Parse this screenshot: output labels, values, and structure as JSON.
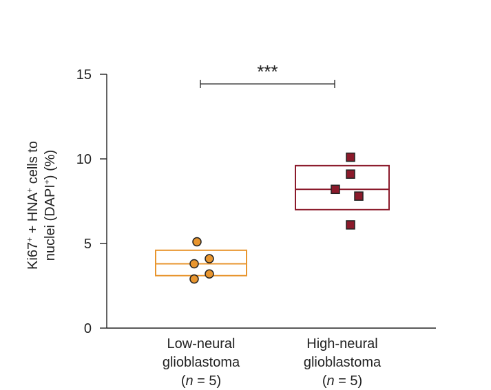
{
  "chart_data": {
    "type": "scatter",
    "ylabel": {
      "line1": [
        "Ki67",
        "+",
        " + HNA",
        "+",
        " cells to"
      ],
      "line2": [
        "nuclei (DAPI",
        "+",
        ") (%)"
      ]
    },
    "ylim": [
      0,
      15
    ],
    "yticks": [
      0,
      5,
      10,
      15
    ],
    "significance": "***",
    "groups": [
      {
        "label_lines": [
          "Low-neural",
          "glioblastoma",
          "(n = 5)"
        ],
        "n_prefix": "(",
        "n_italic": "n",
        "n_suffix": " = 5)",
        "color": "#E8952E",
        "marker": "circle",
        "box": {
          "lower": 3.1,
          "median": 3.8,
          "upper": 4.6
        },
        "values": [
          5.1,
          4.1,
          3.8,
          3.2,
          2.9
        ]
      },
      {
        "label_lines": [
          "High-neural",
          "glioblastoma",
          "(n = 5)"
        ],
        "n_prefix": "(",
        "n_italic": "n",
        "n_suffix": " = 5)",
        "color": "#8B1A2B",
        "marker": "square",
        "box": {
          "lower": 7.0,
          "median": 8.2,
          "upper": 9.6
        },
        "values": [
          10.1,
          9.1,
          8.2,
          7.8,
          6.1
        ]
      }
    ]
  }
}
